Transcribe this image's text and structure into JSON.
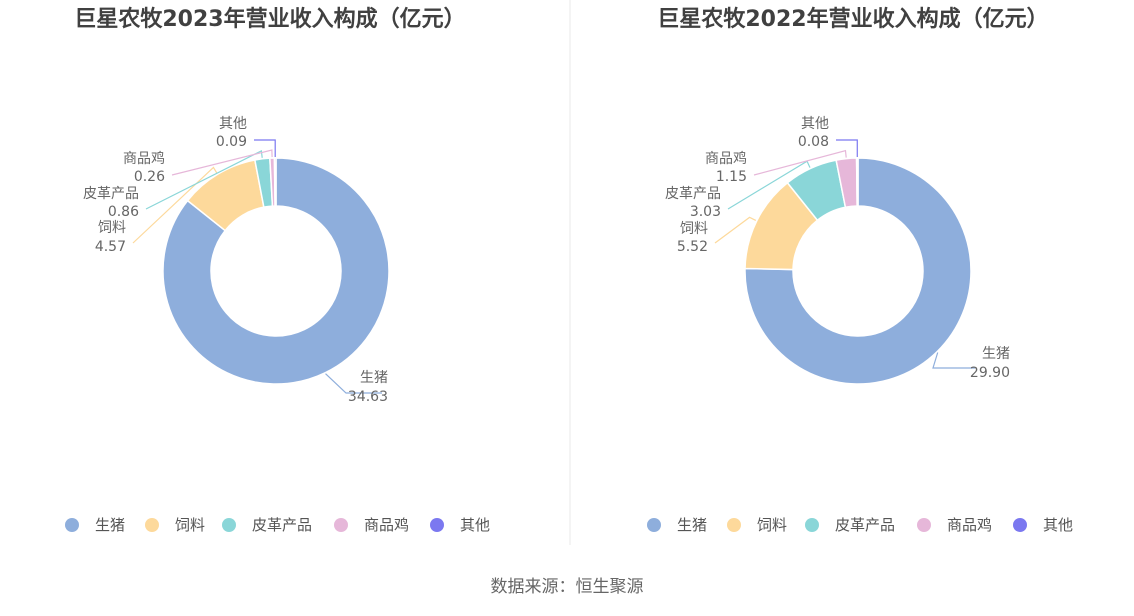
{
  "source": "数据来源：恒生聚源",
  "chart_data": [
    {
      "type": "pie",
      "variant": "donut",
      "title": "巨星农牧2023年营业收入构成（亿元）",
      "legend_position": "bottom",
      "series": [
        {
          "name": "生猪",
          "value": 34.63,
          "label": "34.63",
          "color": "#8eaedc"
        },
        {
          "name": "饲料",
          "value": 4.57,
          "label": "4.57",
          "color": "#fdd99b"
        },
        {
          "name": "皮革产品",
          "value": 0.86,
          "label": "0.86",
          "color": "#8ad6d8"
        },
        {
          "name": "商品鸡",
          "value": 0.26,
          "label": "0.26",
          "color": "#e6b7d9"
        },
        {
          "name": "其他",
          "value": 0.09,
          "label": "0.09",
          "color": "#7b78f0"
        }
      ]
    },
    {
      "type": "pie",
      "variant": "donut",
      "title": "巨星农牧2022年营业收入构成（亿元）",
      "legend_position": "bottom",
      "series": [
        {
          "name": "生猪",
          "value": 29.9,
          "label": "29.90",
          "color": "#8eaedc"
        },
        {
          "name": "饲料",
          "value": 5.52,
          "label": "5.52",
          "color": "#fdd99b"
        },
        {
          "name": "皮革产品",
          "value": 3.03,
          "label": "3.03",
          "color": "#8ad6d8"
        },
        {
          "name": "商品鸡",
          "value": 1.15,
          "label": "1.15",
          "color": "#e6b7d9"
        },
        {
          "name": "其他",
          "value": 0.08,
          "label": "0.08",
          "color": "#7b78f0"
        }
      ]
    }
  ]
}
